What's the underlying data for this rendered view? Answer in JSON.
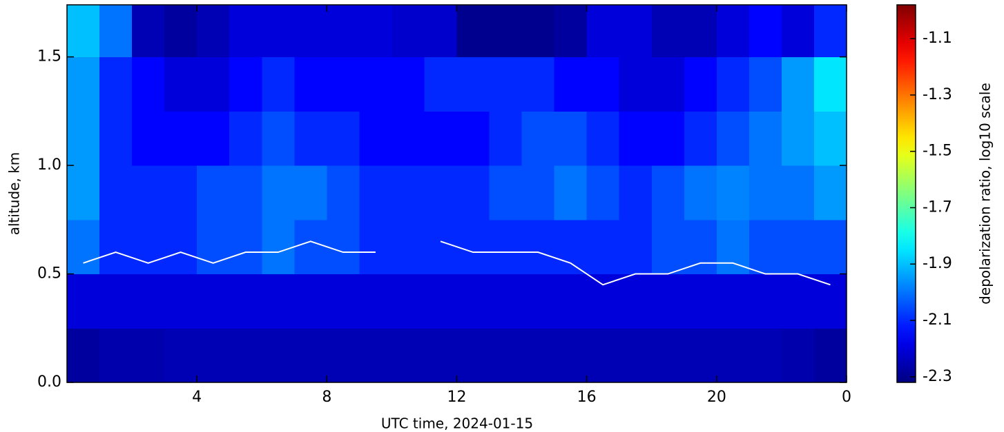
{
  "chart_data": {
    "type": "heatmap",
    "xlabel": "UTC time,  2024-01-15",
    "ylabel": "altitude, km",
    "colorbar_label": "depolarization ratio, log10 scale",
    "colormap": "jet",
    "xlim": [
      0,
      24
    ],
    "ylim": [
      0,
      1.74
    ],
    "xticks": [
      4,
      8,
      12,
      16,
      20,
      {
        "value": 24,
        "label": "0"
      }
    ],
    "yticks": [
      {
        "value": 0,
        "label": "0.0"
      },
      0.5,
      {
        "value": 1,
        "label": "1.0"
      },
      1.5
    ],
    "zlim": [
      -2.32,
      -0.98
    ],
    "zticks": [
      -1.1,
      -1.3,
      -1.5,
      -1.7,
      -1.9,
      -2.1,
      -2.3
    ],
    "x_bins": [
      0,
      1,
      2,
      3,
      4,
      5,
      6,
      7,
      8,
      9,
      10,
      11,
      12,
      13,
      14,
      15,
      16,
      17,
      18,
      19,
      20,
      21,
      22,
      23,
      24
    ],
    "y_bins": [
      0,
      0.25,
      0.5,
      0.75,
      1,
      1.25,
      1.5,
      1.74
    ],
    "z": [
      [
        -2.28,
        -2.26,
        -2.26,
        -2.25,
        -2.25,
        -2.25,
        -2.25,
        -2.25,
        -2.25,
        -2.25,
        -2.25,
        -2.25,
        -2.25,
        -2.25,
        -2.25,
        -2.25,
        -2.25,
        -2.25,
        -2.25,
        -2.25,
        -2.25,
        -2.25,
        -2.26,
        -2.28
      ],
      [
        -2.2,
        -2.2,
        -2.2,
        -2.2,
        -2.2,
        -2.2,
        -2.2,
        -2.2,
        -2.2,
        -2.2,
        -2.2,
        -2.2,
        -2.2,
        -2.2,
        -2.2,
        -2.2,
        -2.2,
        -2.2,
        -2.2,
        -2.2,
        -2.2,
        -2.2,
        -2.2,
        -2.2
      ],
      [
        -2.0,
        -2.1,
        -2.1,
        -2.1,
        -2.05,
        -2.05,
        -2.0,
        -2.05,
        -2.05,
        -2.1,
        -2.1,
        -2.1,
        -2.1,
        -2.1,
        -2.1,
        -2.1,
        -2.1,
        -2.1,
        -2.05,
        -2.05,
        -2.0,
        -2.05,
        -2.05,
        -2.05
      ],
      [
        -1.95,
        -2.1,
        -2.1,
        -2.1,
        -2.05,
        -2.05,
        -2.0,
        -2.0,
        -2.05,
        -2.1,
        -2.1,
        -2.1,
        -2.1,
        -2.05,
        -2.05,
        -2.0,
        -2.05,
        -2.1,
        -2.05,
        -2.0,
        -1.98,
        -2.0,
        -2.0,
        -1.95
      ],
      [
        -1.95,
        -2.1,
        -2.15,
        -2.15,
        -2.15,
        -2.1,
        -2.05,
        -2.1,
        -2.1,
        -2.15,
        -2.15,
        -2.15,
        -2.15,
        -2.1,
        -2.05,
        -2.05,
        -2.1,
        -2.15,
        -2.15,
        -2.1,
        -2.05,
        -2.0,
        -1.95,
        -1.9
      ],
      [
        -1.95,
        -2.1,
        -2.15,
        -2.2,
        -2.2,
        -2.15,
        -2.1,
        -2.15,
        -2.15,
        -2.15,
        -2.15,
        -2.1,
        -2.1,
        -2.1,
        -2.1,
        -2.15,
        -2.15,
        -2.2,
        -2.2,
        -2.15,
        -2.1,
        -2.05,
        -1.95,
        -1.85
      ],
      [
        -1.9,
        -2.0,
        -2.25,
        -2.28,
        -2.25,
        -2.2,
        -2.2,
        -2.2,
        -2.2,
        -2.2,
        -2.22,
        -2.22,
        -2.3,
        -2.3,
        -2.3,
        -2.28,
        -2.2,
        -2.2,
        -2.25,
        -2.25,
        -2.2,
        -2.15,
        -2.2,
        -2.1
      ]
    ],
    "line": {
      "color": "#ffffff",
      "x": [
        0.5,
        1.5,
        2.5,
        3.5,
        4.5,
        5.5,
        6.5,
        7.5,
        8.5,
        9.5,
        10.5,
        11.5,
        12.5,
        13.5,
        14.5,
        15.5,
        16.5,
        17.5,
        18.5,
        19.5,
        20.5,
        21.5,
        22.5,
        23.5
      ],
      "values": [
        0.55,
        0.6,
        0.55,
        0.6,
        0.55,
        0.6,
        0.6,
        0.65,
        0.6,
        0.6,
        null,
        0.65,
        0.6,
        0.6,
        0.6,
        0.55,
        0.45,
        0.5,
        0.5,
        0.55,
        0.55,
        0.5,
        0.5,
        0.45
      ]
    }
  }
}
